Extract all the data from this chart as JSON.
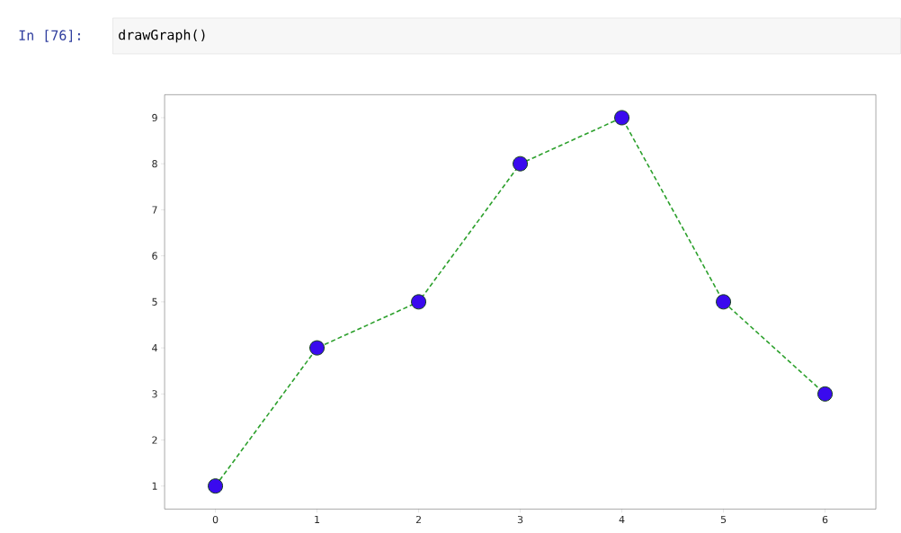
{
  "chart_data": {
    "type": "line",
    "annotations": [
      "In [76]:",
      "drawGraph()"
    ],
    "x": [
      0,
      1,
      2,
      3,
      4,
      5,
      6
    ],
    "series": [
      {
        "color": "#2ca02c",
        "values": [
          1,
          4,
          5,
          8,
          9,
          5,
          3
        ]
      }
    ],
    "xlim": [
      -0.5,
      6.5
    ],
    "ylim": [
      0.5,
      9.5
    ],
    "xticks": [
      0,
      1,
      2,
      3,
      4,
      5,
      6
    ],
    "yticks": [
      1,
      2,
      3,
      4,
      5,
      6,
      7,
      8,
      9
    ],
    "marker": "circle",
    "line_style": "dashed"
  }
}
